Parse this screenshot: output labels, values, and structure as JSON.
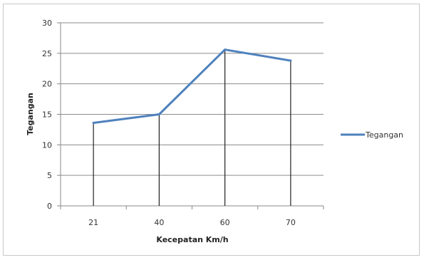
{
  "chart_data": {
    "type": "line",
    "categories": [
      "21",
      "40",
      "60",
      "70"
    ],
    "series": [
      {
        "name": "Tegangan",
        "values": [
          13.6,
          15.0,
          25.6,
          23.8
        ],
        "color": "#4f81bd"
      }
    ],
    "xlabel": "Kecepatan Km/h",
    "ylabel": "Tegangan",
    "ylim": [
      0,
      30
    ],
    "yticks": [
      0,
      5,
      10,
      15,
      20,
      25,
      30
    ],
    "grid": true,
    "drop_lines": true,
    "legend_position": "right"
  }
}
